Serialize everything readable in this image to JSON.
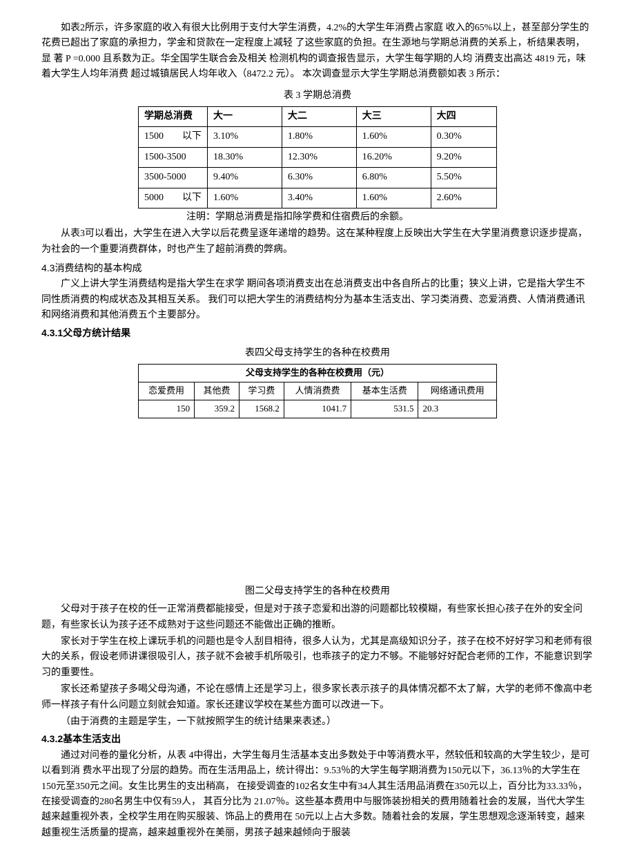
{
  "para1": "如表2所示，许多家庭的收入有很大比例用于支付大学生消费，4.2%的大学生年消费占家庭 收入的65%以上，甚至部分学生的花费已超出了家庭的承担力，学金和贷款在一定程度上减轻 了这些家庭的负担。在生源地与学期总消费的关系上，析结果表明，显 著 P =0.000 且系数为正。华全国学生联合会及相关 检测机构的调查报告显示，大学生每学期的人均 消费支出高达 4819 元，味着大学生人均年消费 超过城镇居民人均年收入（8472.2 元）。 本次调查显示大学生学期总消费额如表 3 所示：",
  "table3": {
    "caption": "表 3 学期总消费",
    "headers": [
      "学期总消费",
      "大一",
      "大二",
      "大三",
      "大四"
    ],
    "rows": [
      {
        "label_start": "1500",
        "label_end": "以下",
        "values": [
          "3.10%",
          "1.80%",
          "1.60%",
          "0.30%"
        ]
      },
      {
        "label": "1500-3500",
        "values": [
          "18.30%",
          "12.30%",
          "16.20%",
          "9.20%"
        ]
      },
      {
        "label": "3500-5000",
        "values": [
          "9.40%",
          "6.30%",
          "6.80%",
          "5.50%"
        ]
      },
      {
        "label_start": "5000",
        "label_end": "以下",
        "values": [
          "1.60%",
          "3.40%",
          "1.60%",
          "2.60%"
        ]
      }
    ],
    "note": "注明：学期总消费是指扣除学费和住宿费后的余额。"
  },
  "para2": "从表3可以看出，大学生在进入大学以后花费呈逐年递增的趋势。这在某种程度上反映出大学生在大学里消费意识逐步提高，为社会的一个重要消费群体，时也产生了超前消费的弊病。",
  "heading43": "4.3消费结构的基本构成",
  "para3": "广义上讲大学生消费结构是指大学生在求学 期间各项消费支出在总消费支出中各自所占的比重；狭义上讲，它是指大学生不同性质消费的构成状态及其相互关系。  我们可以把大学生的消费结构分为基本生活支出、学习类消费、恋爱消费、人情消费通讯和网络消费和其他消费五个主要部分。",
  "heading431": "4.3.1父母方统计结果",
  "table4": {
    "caption": "表四父母支持学生的各种在校费用",
    "header": "父母支持学生的各种在校费用（元）",
    "columns": [
      "恋爱费用",
      "其他费",
      "学习费",
      "人情消费费",
      "基本生活费",
      "网络通讯费用"
    ],
    "values": [
      "150",
      "359.2",
      "1568.2",
      "1041.7",
      "531.5",
      "20.3"
    ]
  },
  "figure_caption": "图二父母支持学生的各种在校费用",
  "para4": "父母对于孩子在校的任一正常消费都能接受，但是对于孩子恋爱和出游的问题都比较模糊，有些家长担心孩子在外的安全问题，有些家长认为孩子还不成熟对于这些问题还不能做出正确的推断。",
  "para5": "家长对于学生在校上课玩手机的问题也是令人刮目相待，很多人认为，尤其是高级知识分子，孩子在校不好好学习和老师有很大的关系，假设老师讲课很吸引人，孩子就不会被手机所吸引，也乖孩子的定力不够。不能够好好配合老师的工作，不能意识到学习的重要性。",
  "para6": "家长还希望孩子多喝父母沟通，不论在感情上还是学习上，很多家长表示孩子的具体情况都不太了解，大学的老师不像高中老师一样孩子有什么问题立刻就会知道。家长还建议学校在某些方面可以改进一下。",
  "para7": "（由于消费的主题是学生，一下就按照学生的统计结果来表述。）",
  "heading432": "4.3.2基本生活支出",
  "para8": "通过对问卷的量化分析，从表 4中得出，大学生每月生活基本支出多数处于中等消费水平，然较低和较高的大学生较少，是可以看到消 费水平出现了分层的趋势。而在生活用品上，统计得出：9.53％的大学生每学期消费为150元以下，36.13％的大学生在150元至350元之间。女生比男生的支出稍高， 在接受调查的102名女生中有34人其生活用品消费在350元以上，百分比为33.33％，在接受调查的280名男生中仅有59人， 其百分比为 21.07％。这些基本费用中与服饰装扮相关的费用随着社会的发展，当代大学生越来越重视外表，全校学生用在购买服装、饰品上的费用在 50元以上占大多数。随着社会的发展，学生思想观念逐渐转变，越来越重视生活质量的提高，越来越重视外在美丽，男孩子越来越倾向于服装"
}
